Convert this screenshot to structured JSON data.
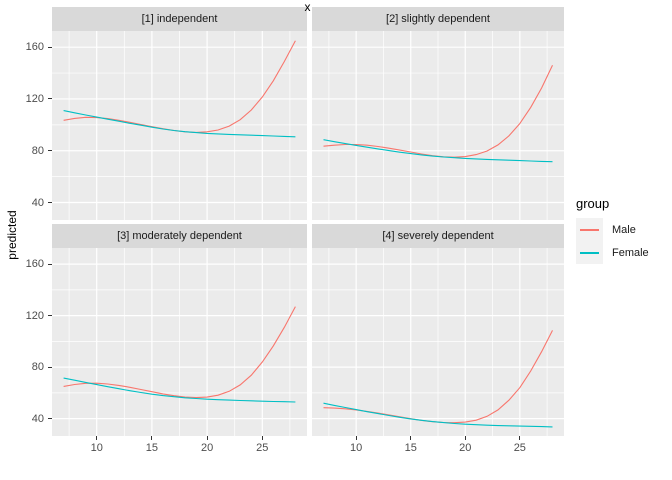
{
  "colors": {
    "panel_background": "#EBEBEB",
    "strip_background": "#D9D9D9",
    "grid": "#FFFFFF",
    "tick_text": "#4D4D4D",
    "male": "#F8766D",
    "female": "#00BFC4"
  },
  "chart_data": {
    "type": "line",
    "title": "",
    "xlabel": "x",
    "ylabel": "predicted",
    "legend_title": "group",
    "legend_position": "right",
    "grid": true,
    "axes": {
      "x": {
        "domain": [
          5.95,
          29.05
        ],
        "ticks": [
          10,
          15,
          20,
          25
        ],
        "minor": [
          7.5,
          12.5,
          17.5,
          22.5,
          27.5
        ]
      },
      "y": {
        "domain": [
          26.5,
          172.5
        ],
        "ticks": [
          40,
          80,
          120,
          160
        ],
        "minor": [
          60,
          100,
          140
        ]
      }
    },
    "series": [
      {
        "name": "Male",
        "color": "#F8766D"
      },
      {
        "name": "Female",
        "color": "#00BFC4"
      }
    ],
    "facets": [
      {
        "label": "[1] independent",
        "points": {
          "Male": [
            [
              7,
              103.5
            ],
            [
              8,
              105
            ],
            [
              9,
              105.8
            ],
            [
              10,
              105.6
            ],
            [
              11,
              104.8
            ],
            [
              12,
              103.5
            ],
            [
              13,
              102
            ],
            [
              14,
              100.3
            ],
            [
              15,
              98.6
            ],
            [
              16,
              97
            ],
            [
              17,
              95.6
            ],
            [
              18,
              94.6
            ],
            [
              19,
              94.2
            ],
            [
              20,
              94.6
            ],
            [
              21,
              96
            ],
            [
              22,
              99
            ],
            [
              23,
              104
            ],
            [
              24,
              111.5
            ],
            [
              25,
              121.5
            ],
            [
              26,
              134
            ],
            [
              27,
              149
            ],
            [
              28,
              165
            ]
          ],
          "Female": [
            [
              7,
              111
            ],
            [
              8,
              109.3
            ],
            [
              9,
              107.6
            ],
            [
              10,
              106
            ],
            [
              11,
              104.4
            ],
            [
              12,
              102.8
            ],
            [
              13,
              101.2
            ],
            [
              14,
              99.7
            ],
            [
              15,
              98.2
            ],
            [
              16,
              96.8
            ],
            [
              17,
              95.6
            ],
            [
              18,
              94.7
            ],
            [
              19,
              94
            ],
            [
              20,
              93.4
            ],
            [
              21,
              93
            ],
            [
              22,
              92.6
            ],
            [
              23,
              92.3
            ],
            [
              24,
              92
            ],
            [
              25,
              91.7
            ],
            [
              26,
              91.4
            ],
            [
              27,
              91.1
            ],
            [
              28,
              90.8
            ]
          ]
        }
      },
      {
        "label": "[2] slightly dependent",
        "points": {
          "Male": [
            [
              7,
              83.5
            ],
            [
              8,
              84.3
            ],
            [
              9,
              84.8
            ],
            [
              10,
              84.8
            ],
            [
              11,
              84.3
            ],
            [
              12,
              83.3
            ],
            [
              13,
              82
            ],
            [
              14,
              80.5
            ],
            [
              15,
              79
            ],
            [
              16,
              77.5
            ],
            [
              17,
              76.2
            ],
            [
              18,
              75.3
            ],
            [
              19,
              75
            ],
            [
              20,
              75.5
            ],
            [
              21,
              77
            ],
            [
              22,
              79.8
            ],
            [
              23,
              84.5
            ],
            [
              24,
              91.5
            ],
            [
              25,
              101
            ],
            [
              26,
              113.5
            ],
            [
              27,
              128.5
            ],
            [
              28,
              146
            ]
          ],
          "Female": [
            [
              7,
              88.5
            ],
            [
              8,
              87
            ],
            [
              9,
              85.5
            ],
            [
              10,
              84.1
            ],
            [
              11,
              82.7
            ],
            [
              12,
              81.4
            ],
            [
              13,
              80.1
            ],
            [
              14,
              78.9
            ],
            [
              15,
              77.8
            ],
            [
              16,
              76.8
            ],
            [
              17,
              75.9
            ],
            [
              18,
              75.2
            ],
            [
              19,
              74.6
            ],
            [
              20,
              74.1
            ],
            [
              21,
              73.7
            ],
            [
              22,
              73.3
            ],
            [
              23,
              73
            ],
            [
              24,
              72.7
            ],
            [
              25,
              72.4
            ],
            [
              26,
              72.1
            ],
            [
              27,
              71.8
            ],
            [
              28,
              71.5
            ]
          ]
        }
      },
      {
        "label": "[3] moderately dependent",
        "points": {
          "Male": [
            [
              7,
              65
            ],
            [
              8,
              66.5
            ],
            [
              9,
              67.4
            ],
            [
              10,
              67.5
            ],
            [
              11,
              66.9
            ],
            [
              12,
              65.8
            ],
            [
              13,
              64.3
            ],
            [
              14,
              62.6
            ],
            [
              15,
              60.9
            ],
            [
              16,
              59.2
            ],
            [
              17,
              57.8
            ],
            [
              18,
              56.8
            ],
            [
              19,
              56.3
            ],
            [
              20,
              56.7
            ],
            [
              21,
              58.2
            ],
            [
              22,
              61.2
            ],
            [
              23,
              66.2
            ],
            [
              24,
              73.7
            ],
            [
              25,
              84
            ],
            [
              26,
              96.5
            ],
            [
              27,
              111
            ],
            [
              28,
              127
            ]
          ],
          "Female": [
            [
              7,
              71.5
            ],
            [
              8,
              69.8
            ],
            [
              9,
              68.1
            ],
            [
              10,
              66.4
            ],
            [
              11,
              64.8
            ],
            [
              12,
              63.2
            ],
            [
              13,
              61.7
            ],
            [
              14,
              60.3
            ],
            [
              15,
              59
            ],
            [
              16,
              57.9
            ],
            [
              17,
              57
            ],
            [
              18,
              56.2
            ],
            [
              19,
              55.6
            ],
            [
              20,
              55.1
            ],
            [
              21,
              54.7
            ],
            [
              22,
              54.4
            ],
            [
              23,
              54.1
            ],
            [
              24,
              53.8
            ],
            [
              25,
              53.5
            ],
            [
              26,
              53.3
            ],
            [
              27,
              53.1
            ],
            [
              28,
              52.9
            ]
          ]
        }
      },
      {
        "label": "[4] severely dependent",
        "points": {
          "Male": [
            [
              7,
              48.5
            ],
            [
              8,
              48.2
            ],
            [
              9,
              47.6
            ],
            [
              10,
              46.7
            ],
            [
              11,
              45.6
            ],
            [
              12,
              44.3
            ],
            [
              13,
              42.9
            ],
            [
              14,
              41.4
            ],
            [
              15,
              39.9
            ],
            [
              16,
              38.6
            ],
            [
              17,
              37.6
            ],
            [
              18,
              37
            ],
            [
              19,
              36.8
            ],
            [
              20,
              37.3
            ],
            [
              21,
              38.8
            ],
            [
              22,
              41.8
            ],
            [
              23,
              46.8
            ],
            [
              24,
              54.3
            ],
            [
              25,
              64
            ],
            [
              26,
              77
            ],
            [
              27,
              92
            ],
            [
              28,
              108.5
            ]
          ],
          "Female": [
            [
              7,
              52
            ],
            [
              8,
              50.3
            ],
            [
              9,
              48.6
            ],
            [
              10,
              47
            ],
            [
              11,
              45.4
            ],
            [
              12,
              43.9
            ],
            [
              13,
              42.4
            ],
            [
              14,
              41
            ],
            [
              15,
              39.8
            ],
            [
              16,
              38.7
            ],
            [
              17,
              37.7
            ],
            [
              18,
              36.9
            ],
            [
              19,
              36.2
            ],
            [
              20,
              35.7
            ],
            [
              21,
              35.3
            ],
            [
              22,
              34.9
            ],
            [
              23,
              34.6
            ],
            [
              24,
              34.4
            ],
            [
              25,
              34.2
            ],
            [
              26,
              34
            ],
            [
              27,
              33.8
            ],
            [
              28,
              33.6
            ]
          ]
        }
      }
    ]
  }
}
